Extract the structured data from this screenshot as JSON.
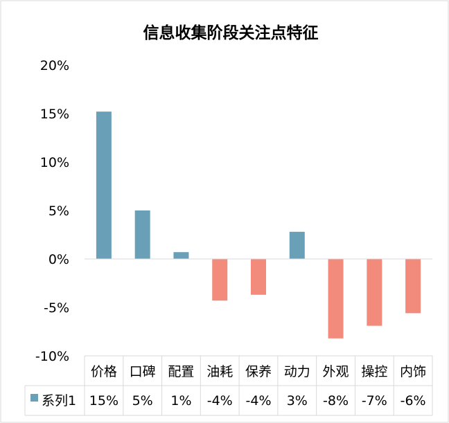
{
  "chart_data": {
    "type": "bar",
    "title": "信息收集阶段关注点特征",
    "categories": [
      "价格",
      "口碑",
      "配置",
      "油耗",
      "保养",
      "动力",
      "外观",
      "操控",
      "内饰"
    ],
    "series": [
      {
        "name": "系列1",
        "values": [
          15.2,
          5.0,
          0.7,
          -4.3,
          -3.7,
          2.8,
          -8.2,
          -6.9,
          -5.6
        ],
        "table_labels": [
          "15%",
          "5%",
          "1%",
          "-4%",
          "-4%",
          "3%",
          "-8%",
          "-7%",
          "-6%"
        ]
      }
    ],
    "ylim": [
      -10,
      20
    ],
    "yticks": [
      -10,
      -5,
      0,
      5,
      10,
      15,
      20
    ],
    "ytick_labels": [
      "-10%",
      "-5%",
      "0%",
      "5%",
      "10%",
      "15%",
      "20%"
    ],
    "positive_color": "#6a9fb8",
    "negative_color": "#f28b7c",
    "grid": false,
    "legend": "data-table"
  }
}
